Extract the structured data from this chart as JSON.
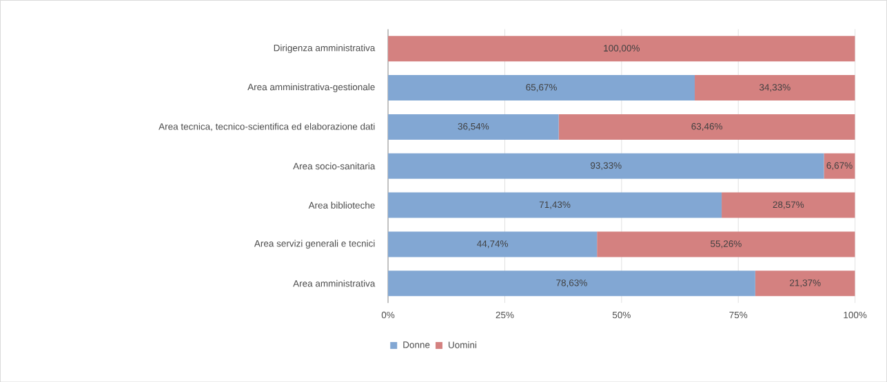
{
  "chart_data": {
    "type": "bar",
    "orientation": "horizontal",
    "stacked": true,
    "categories": [
      "Dirigenza amministrativa",
      "Area amministrativa-gestionale",
      "Area tecnica, tecnico-scientifica ed elaborazione dati",
      "Area socio-sanitaria",
      "Area biblioteche",
      "Area servizi generali e tecnici",
      "Area amministrativa"
    ],
    "series": [
      {
        "name": "Donne",
        "color": "#82a7d3",
        "values": [
          0,
          65.67,
          36.54,
          93.33,
          71.43,
          44.74,
          78.63
        ],
        "value_labels": [
          null,
          "65,67%",
          "36,54%",
          "93,33%",
          "71,43%",
          "44,74%",
          "78,63%"
        ]
      },
      {
        "name": "Uomini",
        "color": "#d48180",
        "values": [
          100,
          34.33,
          63.46,
          6.67,
          28.57,
          55.26,
          21.37
        ],
        "value_labels": [
          "100,00%",
          "34,33%",
          "63,46%",
          "6,67%",
          "28,57%",
          "55,26%",
          "21,37%"
        ]
      }
    ],
    "xlim": [
      0,
      100
    ],
    "xticks": [
      {
        "value": 0,
        "label": "0%"
      },
      {
        "value": 25,
        "label": "25%"
      },
      {
        "value": 50,
        "label": "50%"
      },
      {
        "value": 75,
        "label": "75%"
      },
      {
        "value": 100,
        "label": "100%"
      }
    ],
    "grid": "x",
    "legend": "bottom"
  }
}
